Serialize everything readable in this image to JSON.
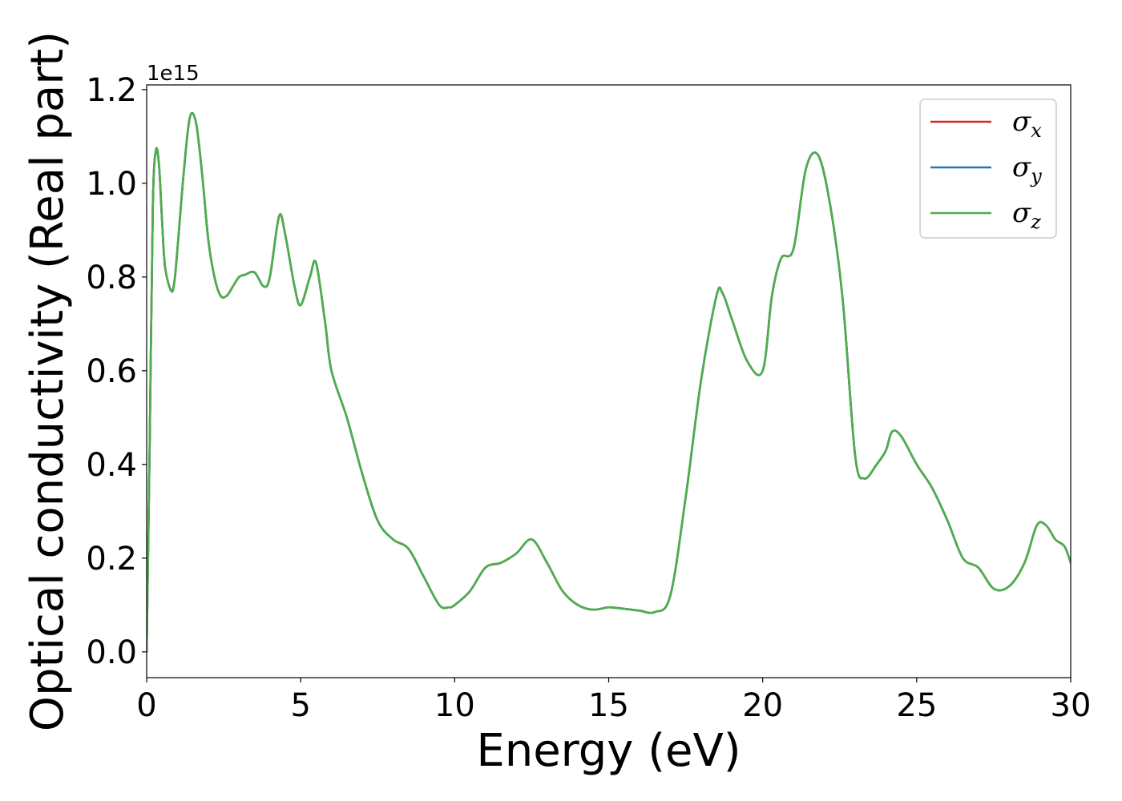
{
  "chart_data": {
    "type": "line",
    "xlabel": "Energy (eV)",
    "ylabel": "Optical conductivity (Real part)",
    "y_offset_label": "1e15",
    "y_scale_factor": 1000000000000000.0,
    "xlim": [
      0,
      30
    ],
    "ylim": [
      -0.055,
      1.21
    ],
    "x_ticks": [
      0,
      5,
      10,
      15,
      20,
      25,
      30
    ],
    "x_tick_labels": [
      "0",
      "5",
      "10",
      "15",
      "20",
      "25",
      "30"
    ],
    "y_ticks": [
      0.0,
      0.2,
      0.4,
      0.6,
      0.8,
      1.0,
      1.2
    ],
    "y_tick_labels": [
      "0.0",
      "0.2",
      "0.4",
      "0.6",
      "0.8",
      "1.0",
      "1.2"
    ],
    "grid": false,
    "legend_position": "top-right",
    "x": [
      0,
      0.1,
      0.2,
      0.3,
      0.4,
      0.5,
      0.6,
      0.8,
      0.9,
      1.0,
      1.2,
      1.4,
      1.6,
      1.8,
      2.0,
      2.2,
      2.4,
      2.6,
      2.8,
      3.0,
      3.2,
      3.5,
      3.8,
      4.0,
      4.3,
      4.5,
      4.8,
      5.0,
      5.3,
      5.5,
      5.8,
      6.0,
      6.5,
      7.0,
      7.5,
      8.0,
      8.5,
      9.0,
      9.5,
      9.8,
      10.0,
      10.5,
      11.0,
      11.5,
      12.0,
      12.5,
      13.0,
      13.5,
      14.0,
      14.5,
      15.0,
      15.5,
      16.0,
      16.5,
      17.0,
      17.5,
      18.0,
      18.5,
      18.7,
      19.0,
      19.5,
      20.0,
      20.3,
      20.6,
      21.0,
      21.4,
      21.8,
      22.2,
      22.6,
      23.0,
      23.3,
      23.7,
      24.0,
      24.2,
      24.5,
      25.0,
      25.5,
      26.0,
      26.5,
      27.0,
      27.5,
      28.0,
      28.5,
      28.9,
      29.2,
      29.5,
      29.8,
      30.0
    ],
    "series": [
      {
        "name": "σx",
        "color": "#d62728",
        "values": [
          0,
          0.45,
          0.95,
          1.07,
          1.04,
          0.92,
          0.82,
          0.77,
          0.79,
          0.86,
          1.02,
          1.14,
          1.13,
          1.02,
          0.88,
          0.8,
          0.76,
          0.76,
          0.78,
          0.8,
          0.805,
          0.81,
          0.78,
          0.8,
          0.93,
          0.89,
          0.78,
          0.74,
          0.8,
          0.83,
          0.7,
          0.6,
          0.5,
          0.38,
          0.28,
          0.24,
          0.22,
          0.16,
          0.1,
          0.095,
          0.1,
          0.13,
          0.18,
          0.19,
          0.21,
          0.24,
          0.19,
          0.13,
          0.1,
          0.09,
          0.095,
          0.092,
          0.088,
          0.085,
          0.12,
          0.33,
          0.58,
          0.76,
          0.765,
          0.71,
          0.62,
          0.6,
          0.76,
          0.84,
          0.86,
          1.03,
          1.06,
          0.95,
          0.75,
          0.42,
          0.37,
          0.4,
          0.43,
          0.47,
          0.46,
          0.4,
          0.35,
          0.28,
          0.2,
          0.18,
          0.135,
          0.14,
          0.19,
          0.27,
          0.27,
          0.24,
          0.225,
          0.19
        ]
      },
      {
        "name": "σy",
        "color": "#1f77b4",
        "values": [
          0,
          0.45,
          0.95,
          1.07,
          1.04,
          0.92,
          0.82,
          0.77,
          0.79,
          0.86,
          1.02,
          1.14,
          1.13,
          1.02,
          0.88,
          0.8,
          0.76,
          0.76,
          0.78,
          0.8,
          0.805,
          0.81,
          0.78,
          0.8,
          0.93,
          0.89,
          0.78,
          0.74,
          0.8,
          0.83,
          0.7,
          0.6,
          0.5,
          0.38,
          0.28,
          0.24,
          0.22,
          0.16,
          0.1,
          0.095,
          0.1,
          0.13,
          0.18,
          0.19,
          0.21,
          0.24,
          0.19,
          0.13,
          0.1,
          0.09,
          0.095,
          0.092,
          0.088,
          0.085,
          0.12,
          0.33,
          0.58,
          0.76,
          0.765,
          0.71,
          0.62,
          0.6,
          0.76,
          0.84,
          0.86,
          1.03,
          1.06,
          0.95,
          0.75,
          0.42,
          0.37,
          0.4,
          0.43,
          0.47,
          0.46,
          0.4,
          0.35,
          0.28,
          0.2,
          0.18,
          0.135,
          0.14,
          0.19,
          0.27,
          0.27,
          0.24,
          0.225,
          0.19
        ]
      },
      {
        "name": "σz",
        "color": "#4daf4a",
        "values": [
          0,
          0.45,
          0.95,
          1.07,
          1.04,
          0.92,
          0.82,
          0.77,
          0.79,
          0.86,
          1.02,
          1.14,
          1.13,
          1.02,
          0.88,
          0.8,
          0.76,
          0.76,
          0.78,
          0.8,
          0.805,
          0.81,
          0.78,
          0.8,
          0.93,
          0.89,
          0.78,
          0.74,
          0.8,
          0.83,
          0.7,
          0.6,
          0.5,
          0.38,
          0.28,
          0.24,
          0.22,
          0.16,
          0.1,
          0.095,
          0.1,
          0.13,
          0.18,
          0.19,
          0.21,
          0.24,
          0.19,
          0.13,
          0.1,
          0.09,
          0.095,
          0.092,
          0.088,
          0.085,
          0.12,
          0.33,
          0.58,
          0.76,
          0.765,
          0.71,
          0.62,
          0.6,
          0.76,
          0.84,
          0.86,
          1.03,
          1.06,
          0.95,
          0.75,
          0.42,
          0.37,
          0.4,
          0.43,
          0.47,
          0.46,
          0.4,
          0.35,
          0.28,
          0.2,
          0.18,
          0.135,
          0.14,
          0.19,
          0.27,
          0.27,
          0.24,
          0.225,
          0.19
        ]
      }
    ],
    "legend": [
      {
        "symbol": "σ",
        "sub": "x",
        "color": "#d62728"
      },
      {
        "symbol": "σ",
        "sub": "y",
        "color": "#1f77b4"
      },
      {
        "symbol": "σ",
        "sub": "z",
        "color": "#4daf4a"
      }
    ]
  }
}
